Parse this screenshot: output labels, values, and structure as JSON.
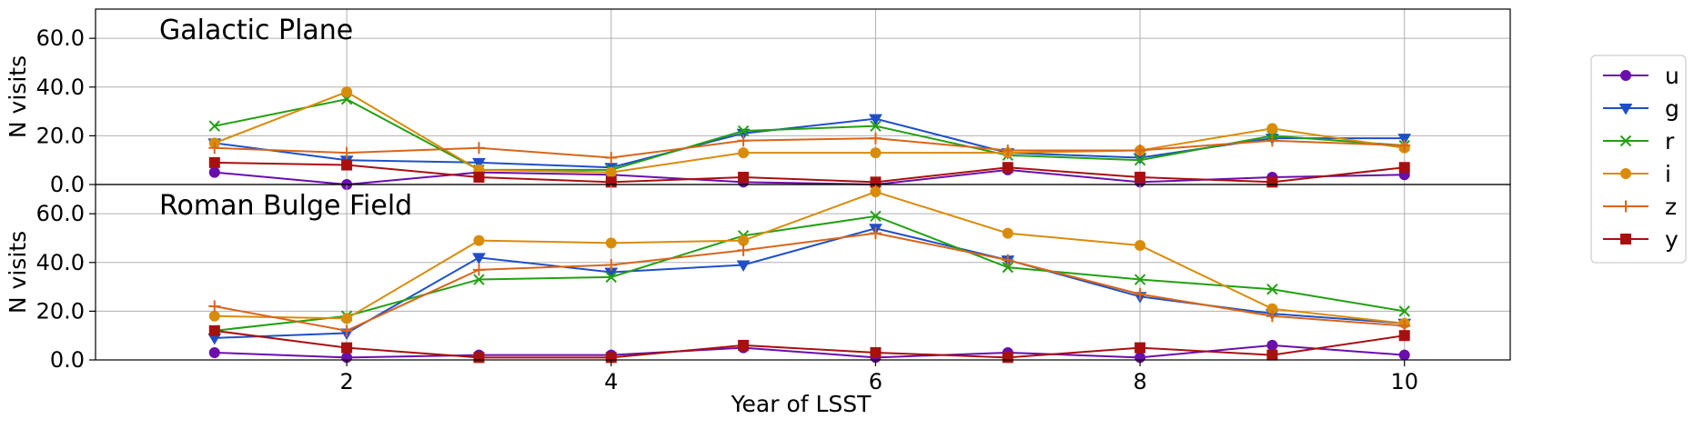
{
  "chart_data": {
    "type": "line",
    "xlabel": "Year of LSST",
    "xlim": [
      0.1,
      10.8
    ],
    "x": [
      1,
      2,
      3,
      4,
      5,
      6,
      7,
      8,
      9,
      10
    ],
    "xticks": [
      2,
      4,
      6,
      8,
      10
    ],
    "xtick_labels": [
      "2",
      "4",
      "6",
      "8",
      "10"
    ],
    "grid": true,
    "legend_position": "outside-right",
    "legend": [
      "u",
      "g",
      "r",
      "i",
      "z",
      "y"
    ],
    "series_styles": [
      {
        "name": "u",
        "color": "#6a0dad",
        "marker": "circle"
      },
      {
        "name": "g",
        "color": "#1f4fc8",
        "marker": "triangle-down"
      },
      {
        "name": "r",
        "color": "#22a012",
        "marker": "x"
      },
      {
        "name": "i",
        "color": "#d98c0a",
        "marker": "circle"
      },
      {
        "name": "z",
        "color": "#d9651a",
        "marker": "plus"
      },
      {
        "name": "y",
        "color": "#a81010",
        "marker": "square"
      }
    ],
    "panels": [
      {
        "title": "Galactic Plane",
        "ylabel": "N visits",
        "ylim": [
          0,
          72
        ],
        "yticks": [
          0,
          20,
          40,
          60
        ],
        "ytick_labels": [
          "0.0",
          "20.0",
          "40.0",
          "60.0"
        ],
        "series": [
          {
            "name": "u",
            "values": [
              5,
              0,
              5,
              4,
              1,
              0,
              6,
              1,
              3,
              4
            ]
          },
          {
            "name": "g",
            "values": [
              17,
              10,
              9,
              7,
              21,
              27,
              13,
              11,
              19,
              19
            ]
          },
          {
            "name": "r",
            "values": [
              24,
              35,
              6,
              6,
              22,
              24,
              12,
              10,
              20,
              16
            ]
          },
          {
            "name": "i",
            "values": [
              17,
              38,
              6,
              5,
              13,
              13,
              13,
              14,
              23,
              15
            ]
          },
          {
            "name": "z",
            "values": [
              15,
              13,
              15,
              11,
              18,
              19,
              14,
              14,
              18,
              16
            ]
          },
          {
            "name": "y",
            "values": [
              9,
              8,
              3,
              1,
              3,
              1,
              7,
              3,
              1,
              7
            ]
          }
        ]
      },
      {
        "title": "Roman Bulge Field",
        "ylabel": "N visits",
        "ylim": [
          0,
          72
        ],
        "yticks": [
          0,
          20,
          40,
          60
        ],
        "ytick_labels": [
          "0.0",
          "20.0",
          "40.0",
          "60.0"
        ],
        "series": [
          {
            "name": "u",
            "values": [
              3,
              1,
              2,
              2,
              5,
              1,
              3,
              1,
              6,
              2
            ]
          },
          {
            "name": "g",
            "values": [
              9,
              11,
              42,
              36,
              39,
              54,
              41,
              26,
              19,
              15
            ]
          },
          {
            "name": "r",
            "values": [
              12,
              18,
              33,
              34,
              51,
              59,
              38,
              33,
              29,
              20
            ]
          },
          {
            "name": "i",
            "values": [
              18,
              17,
              49,
              48,
              49,
              69,
              52,
              47,
              21,
              15
            ]
          },
          {
            "name": "z",
            "values": [
              22,
              12,
              37,
              39,
              45,
              52,
              41,
              27,
              18,
              14
            ]
          },
          {
            "name": "y",
            "values": [
              12,
              5,
              1,
              1,
              6,
              3,
              1,
              5,
              2,
              10
            ]
          }
        ]
      }
    ]
  }
}
